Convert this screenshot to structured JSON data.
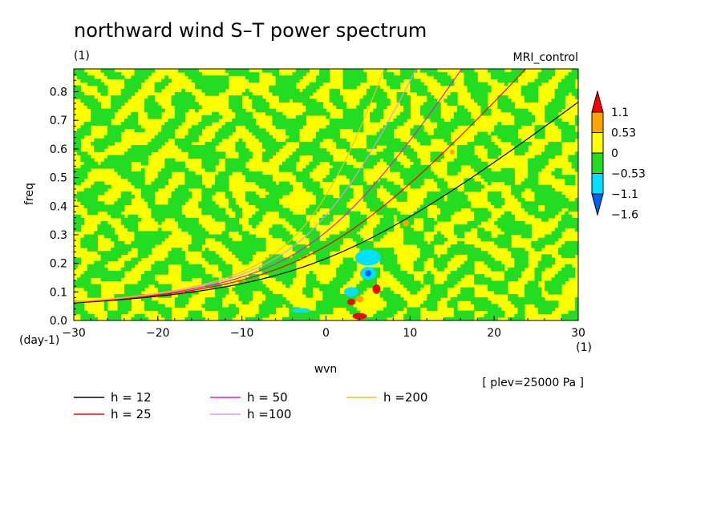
{
  "chart_data": {
    "type": "heatmap",
    "title": "northward wind S–T power spectrum",
    "subtitle_left": "(1)",
    "subtitle_right": "MRI_control",
    "xlabel": "wvn",
    "ylabel": "freq",
    "x_unit": "(1)",
    "y_unit": "(day-1)",
    "xlim": [
      -30,
      30
    ],
    "ylim": [
      0,
      0.88
    ],
    "x_ticks": [
      -30,
      -20,
      -10,
      0,
      10,
      20,
      30
    ],
    "y_ticks": [
      0.0,
      0.1,
      0.2,
      0.3,
      0.4,
      0.5,
      0.6,
      0.7,
      0.8
    ],
    "x_tick_labels": [
      "−30",
      "−20",
      "−10",
      "0",
      "10",
      "20",
      "30"
    ],
    "y_tick_labels": [
      "0.0",
      "0.1",
      "0.2",
      "0.3",
      "0.4",
      "0.5",
      "0.6",
      "0.7",
      "0.8"
    ],
    "colorbar": {
      "levels": [
        -1.6,
        -1.1,
        -0.53,
        0,
        0.53,
        1.1
      ],
      "labels": [
        "−1.6",
        "−1.1",
        "−0.53",
        "0",
        "0.53",
        "1.1"
      ],
      "colors": [
        "#0060ff",
        "#00e0ff",
        "#22dd22",
        "#ffff00",
        "#ffa500",
        "#ff0000"
      ]
    },
    "dispersion_curves": [
      {
        "name": "h = 12",
        "h": 12,
        "color": "#000000"
      },
      {
        "name": "h = 25",
        "h": 25,
        "color": "#ff0000"
      },
      {
        "name": "h = 50",
        "h": 50,
        "color": "#e020c0"
      },
      {
        "name": "h =100",
        "h": 100,
        "color": "#dd99ee"
      },
      {
        "name": "h =200",
        "h": 200,
        "color": "#f0c020"
      }
    ],
    "annotation": "[ plev=25000 Pa ]",
    "field_colors": {
      "positive_low": "#ffff00",
      "negative_low": "#22dd22",
      "positive_mid": "#ffa500",
      "negative_mid": "#00e0ff",
      "positive_high": "#ff0000",
      "negative_high": "#0060ff"
    }
  }
}
